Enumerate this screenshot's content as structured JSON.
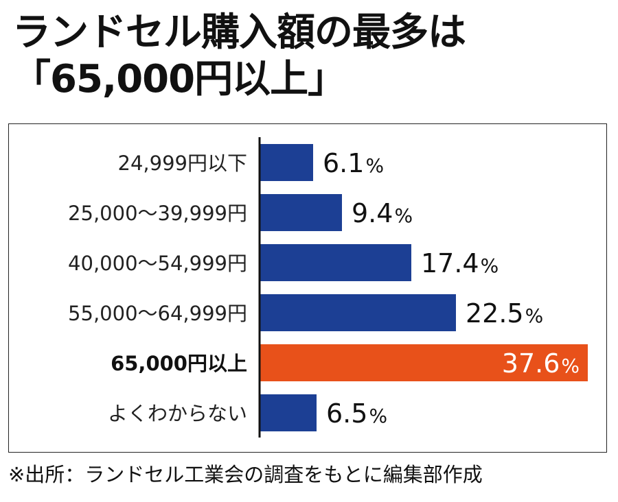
{
  "title": {
    "line1": "ランドセル購入額の最多は",
    "line2": "「65,000円以上」"
  },
  "source_note": "※出所：ランドセル工業会の調査をもとに編集部作成",
  "colors": {
    "bar_default": "#1c3f94",
    "bar_highlight": "#e8511a",
    "axis": "#111111"
  },
  "chart_data": {
    "type": "bar",
    "orientation": "horizontal",
    "unit": "%",
    "categories": [
      "24,999円以下",
      "25,000～39,999円",
      "40,000～54,999円",
      "55,000～64,999円",
      "65,000円以上",
      "よくわからない"
    ],
    "values": [
      6.1,
      9.4,
      17.4,
      22.5,
      37.6,
      6.5
    ],
    "value_labels": [
      "6.1",
      "9.4",
      "17.4",
      "22.5",
      "37.6",
      "6.5"
    ],
    "highlight_index": 4,
    "xlim": [
      0,
      37.6
    ],
    "grid": false,
    "legend": "none"
  }
}
